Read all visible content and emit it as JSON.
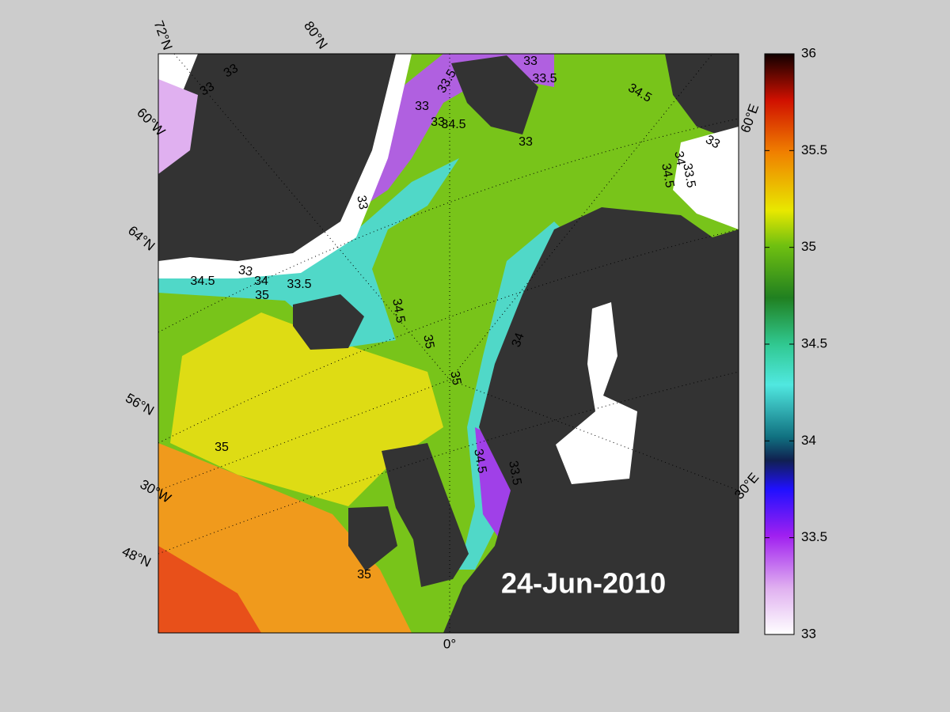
{
  "map": {
    "date_label": "24-Jun-2010",
    "graticule_labels": [
      "72°N",
      "80°N",
      "60°W",
      "64°N",
      "56°N",
      "30°W",
      "48°N",
      "0°",
      "30°E",
      "60°E"
    ],
    "contour_labels": [
      33,
      33,
      33.5,
      33,
      33,
      33.5,
      34.5,
      33,
      34.5,
      33,
      34,
      34.5,
      33,
      33.5,
      33,
      33,
      34.5,
      34,
      33.5,
      35,
      34.5,
      35,
      35,
      34,
      35,
      34.5,
      33.5,
      35
    ],
    "colorbar": {
      "lim": [
        33,
        36
      ],
      "ticks": [
        33,
        33.5,
        34,
        34.5,
        35,
        35.5,
        36
      ]
    }
  }
}
